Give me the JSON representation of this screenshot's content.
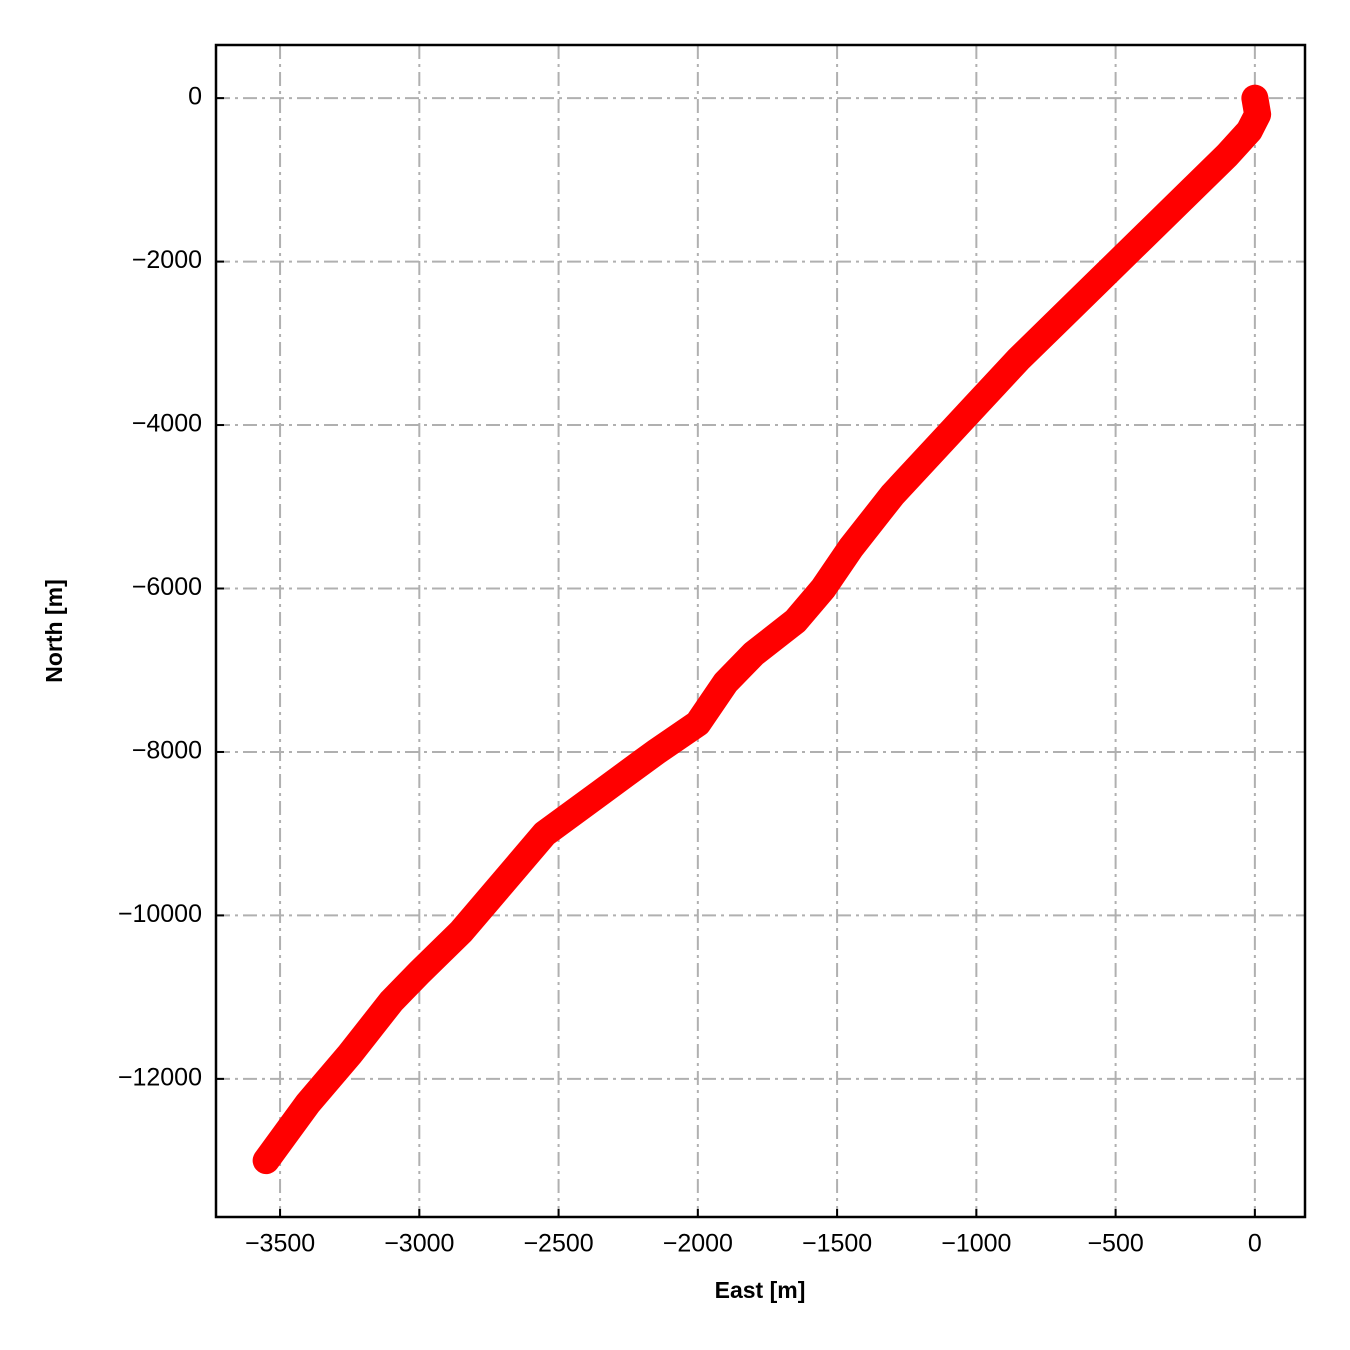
{
  "chart_data": {
    "type": "line",
    "x_label": "East [m]",
    "y_label": "North [m]",
    "series": [
      {
        "color": "#ff0000",
        "x": [
          0,
          10,
          -20,
          -100,
          -250,
          -400,
          -550,
          -700,
          -850,
          -1000,
          -1150,
          -1300,
          -1450,
          -1550,
          -1650,
          -1800,
          -1900,
          -2000,
          -2150,
          -2350,
          -2550,
          -2700,
          -2850,
          -3000,
          -3100,
          -3250,
          -3400,
          -3550
        ],
        "values": [
          0,
          -200,
          -400,
          -700,
          -1200,
          -1700,
          -2200,
          -2700,
          -3200,
          -3750,
          -4300,
          -4850,
          -5500,
          -6000,
          -6400,
          -6800,
          -7150,
          -7650,
          -8000,
          -8500,
          -9000,
          -9600,
          -10200,
          -10700,
          -11050,
          -11700,
          -12300,
          -13000
        ]
      }
    ],
    "xlim": [
      -3730,
      180
    ],
    "ylim": [
      -13690,
      650
    ],
    "xticks": [
      {
        "value": -3500,
        "label": "−3500"
      },
      {
        "value": -3000,
        "label": "−3000"
      },
      {
        "value": -2500,
        "label": "−2500"
      },
      {
        "value": -2000,
        "label": "−2000"
      },
      {
        "value": -1500,
        "label": "−1500"
      },
      {
        "value": -1000,
        "label": "−1000"
      },
      {
        "value": -500,
        "label": "−500"
      },
      0
    ],
    "yticks": [
      0,
      {
        "value": -2000,
        "label": "−2000"
      },
      {
        "value": -4000,
        "label": "−4000"
      },
      {
        "value": -6000,
        "label": "−6000"
      },
      {
        "value": -8000,
        "label": "−8000"
      },
      {
        "value": -10000,
        "label": "−10000"
      },
      {
        "value": -12000,
        "label": "−12000"
      }
    ],
    "grid": true
  }
}
